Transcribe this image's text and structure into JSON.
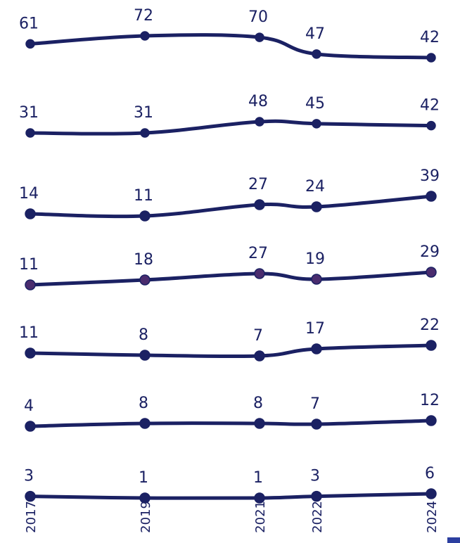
{
  "chart_data": {
    "type": "line",
    "x": [
      "2017",
      "2019",
      "2021",
      "2022",
      "2024"
    ],
    "series": [
      {
        "values": [
          61,
          72,
          70,
          47,
          42
        ]
      },
      {
        "values": [
          31,
          31,
          48,
          45,
          42
        ]
      },
      {
        "values": [
          14,
          11,
          27,
          24,
          39
        ]
      },
      {
        "values": [
          11,
          18,
          27,
          19,
          29
        ]
      },
      {
        "values": [
          11,
          8,
          7,
          17,
          22
        ]
      },
      {
        "values": [
          4,
          8,
          8,
          7,
          12
        ]
      },
      {
        "values": [
          3,
          1,
          1,
          3,
          6
        ]
      }
    ],
    "colors": {
      "line": "#1b2163",
      "marker_purple": "#4a2c6e",
      "accent": "#2c3fa0"
    },
    "grid": false,
    "legend": "none"
  }
}
